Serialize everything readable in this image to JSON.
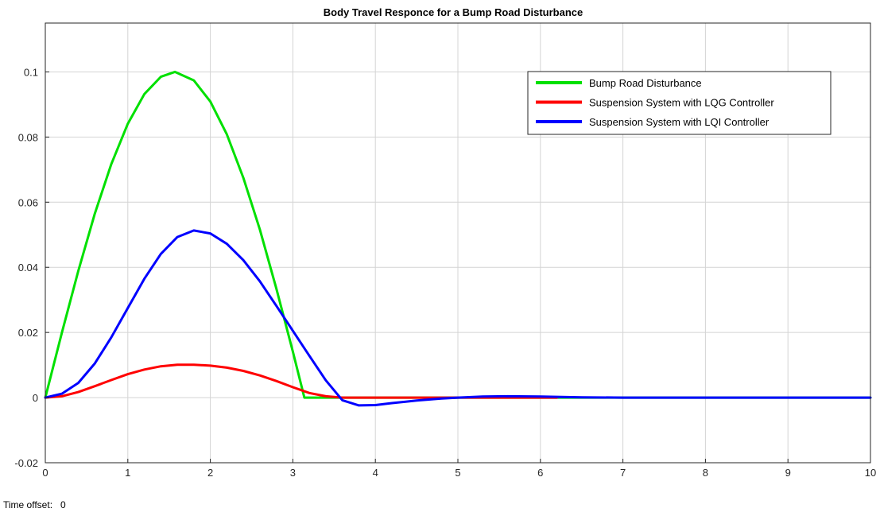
{
  "chart_data": {
    "type": "line",
    "title": "Body Travel Responce for a Bump Road Disturbance",
    "xlabel": "",
    "ylabel": "",
    "xlim": [
      0,
      10
    ],
    "ylim": [
      -0.02,
      0.115
    ],
    "x_ticks": [
      0,
      1,
      2,
      3,
      4,
      5,
      6,
      7,
      8,
      9,
      10
    ],
    "x_tick_labels": [
      "0",
      "1",
      "2",
      "3",
      "4",
      "5",
      "6",
      "7",
      "8",
      "9",
      "10"
    ],
    "y_ticks": [
      -0.02,
      0,
      0.02,
      0.04,
      0.06,
      0.08,
      0.1
    ],
    "y_tick_labels": [
      "-0.02",
      "0",
      "0.02",
      "0.04",
      "0.06",
      "0.08",
      "0.1"
    ],
    "grid": true,
    "legend_position": "top-right",
    "series": [
      {
        "name": "Bump Road Disturbance",
        "color": "#00e000",
        "points": [
          [
            0,
            0
          ],
          [
            0.2,
            0.0199
          ],
          [
            0.4,
            0.0389
          ],
          [
            0.6,
            0.0565
          ],
          [
            0.8,
            0.0717
          ],
          [
            1.0,
            0.0841
          ],
          [
            1.2,
            0.0932
          ],
          [
            1.4,
            0.0985
          ],
          [
            1.57,
            0.1
          ],
          [
            1.8,
            0.0974
          ],
          [
            2.0,
            0.0909
          ],
          [
            2.2,
            0.0808
          ],
          [
            2.4,
            0.0675
          ],
          [
            2.6,
            0.0516
          ],
          [
            2.8,
            0.0335
          ],
          [
            3.0,
            0.0141
          ],
          [
            3.14,
            0.0
          ],
          [
            3.5,
            0.0
          ],
          [
            10,
            0.0
          ]
        ]
      },
      {
        "name": "Suspension System with LQG Controller",
        "color": "#ff0000",
        "points": [
          [
            0,
            0
          ],
          [
            0.2,
            0.0004
          ],
          [
            0.4,
            0.0017
          ],
          [
            0.6,
            0.0035
          ],
          [
            0.8,
            0.0054
          ],
          [
            1.0,
            0.0072
          ],
          [
            1.2,
            0.0086
          ],
          [
            1.4,
            0.0096
          ],
          [
            1.6,
            0.0101
          ],
          [
            1.8,
            0.0101
          ],
          [
            2.0,
            0.0098
          ],
          [
            2.2,
            0.0092
          ],
          [
            2.4,
            0.0082
          ],
          [
            2.6,
            0.0068
          ],
          [
            2.8,
            0.0051
          ],
          [
            3.0,
            0.0032
          ],
          [
            3.2,
            0.0014
          ],
          [
            3.4,
            0.0004
          ],
          [
            3.6,
            0.0
          ],
          [
            4.0,
            0.0
          ],
          [
            5.0,
            0.0
          ],
          [
            6.2,
            0.0
          ]
        ]
      },
      {
        "name": "Suspension System with LQI Controller",
        "color": "#0000ff",
        "points": [
          [
            0,
            0
          ],
          [
            0.2,
            0.0012
          ],
          [
            0.4,
            0.0045
          ],
          [
            0.6,
            0.0105
          ],
          [
            0.8,
            0.0185
          ],
          [
            1.0,
            0.0275
          ],
          [
            1.2,
            0.0365
          ],
          [
            1.4,
            0.0441
          ],
          [
            1.6,
            0.0493
          ],
          [
            1.8,
            0.0513
          ],
          [
            2.0,
            0.0504
          ],
          [
            2.2,
            0.0472
          ],
          [
            2.4,
            0.0422
          ],
          [
            2.6,
            0.0357
          ],
          [
            2.8,
            0.0282
          ],
          [
            3.0,
            0.0205
          ],
          [
            3.2,
            0.0128
          ],
          [
            3.4,
            0.0053
          ],
          [
            3.6,
            -0.0008
          ],
          [
            3.8,
            -0.0024
          ],
          [
            4.0,
            -0.0023
          ],
          [
            4.2,
            -0.0017
          ],
          [
            4.5,
            -0.0009
          ],
          [
            4.8,
            -0.0003
          ],
          [
            5.0,
            0.0
          ],
          [
            5.3,
            0.0003
          ],
          [
            5.6,
            0.0004
          ],
          [
            6.0,
            0.0003
          ],
          [
            6.5,
            0.0001
          ],
          [
            7.0,
            0.0
          ],
          [
            10,
            0.0
          ]
        ]
      }
    ]
  },
  "footer": {
    "label": "Time offset:",
    "value": "0"
  }
}
